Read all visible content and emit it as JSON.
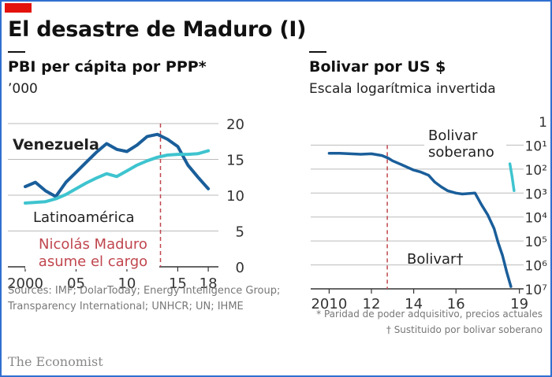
{
  "header": {
    "main_title": "El desastre de Maduro (I)"
  },
  "colors": {
    "accent_red": "#e3120b",
    "venezuela_line": "#1a5e9a",
    "latam_line": "#3ec4cf",
    "bolivar_line": "#1a5e9a",
    "bolivar_soberano_line": "#3ec4cf",
    "annotation_red": "#c0464e",
    "background": "#ffffff",
    "gridline": "#bbbbbb"
  },
  "chart_data": [
    {
      "type": "line",
      "title": "PBI per cápita por PPP*",
      "ylabel": "’000",
      "ylim": [
        0,
        20
      ],
      "y_ticks": [
        "20",
        "15",
        "10",
        "5",
        "0"
      ],
      "xlim": [
        2000,
        2019
      ],
      "x_ticks": [
        "2000",
        "05",
        "10",
        "15",
        "18"
      ],
      "grid": true,
      "axis_side": "right",
      "series": [
        {
          "name": "Venezuela",
          "x": [
            2000,
            2001,
            2002,
            2003,
            2004,
            2005,
            2006,
            2007,
            2008,
            2009,
            2010,
            2011,
            2012,
            2013,
            2014,
            2015,
            2016,
            2017,
            2018
          ],
          "values": [
            11.2,
            11.8,
            10.6,
            9.8,
            11.8,
            13.2,
            14.6,
            16.0,
            17.2,
            16.4,
            16.1,
            17.0,
            18.2,
            18.5,
            17.8,
            16.8,
            14.2,
            12.5,
            10.9
          ]
        },
        {
          "name": "Latinoamérica",
          "x": [
            2000,
            2001,
            2002,
            2003,
            2004,
            2005,
            2006,
            2007,
            2008,
            2009,
            2010,
            2011,
            2012,
            2013,
            2014,
            2015,
            2016,
            2017,
            2018
          ],
          "values": [
            8.9,
            9.0,
            9.1,
            9.5,
            10.1,
            10.9,
            11.7,
            12.4,
            13.0,
            12.6,
            13.4,
            14.2,
            14.8,
            15.3,
            15.6,
            15.7,
            15.7,
            15.8,
            16.2
          ]
        }
      ],
      "annotations": [
        {
          "text_lines": [
            "Nicolás Maduro",
            "asume el cargo"
          ],
          "x": 2013.3
        }
      ]
    },
    {
      "type": "line",
      "title": "Bolivar por US $",
      "subtitle": "Escala logarítmica invertida",
      "scale": "log-inverted",
      "ylim": [
        1,
        10000000
      ],
      "y_ticks": [
        "1",
        "10¹",
        "10²",
        "10³",
        "10⁴",
        "10⁵",
        "10⁶",
        "10⁷"
      ],
      "xlim": [
        2009.5,
        2019.2
      ],
      "x_ticks": [
        "2010",
        "12",
        "14",
        "16",
        "19"
      ],
      "grid": true,
      "axis_side": "right",
      "series": [
        {
          "name": "Bolivar†",
          "x": [
            2010.0,
            2010.5,
            2011.0,
            2011.5,
            2012.0,
            2012.5,
            2012.8,
            2013.0,
            2013.5,
            2014.0,
            2014.3,
            2014.7,
            2015.0,
            2015.3,
            2015.6,
            2016.0,
            2016.3,
            2016.6,
            2016.9,
            2017.2,
            2017.5,
            2017.8,
            2018.0,
            2018.2,
            2018.4,
            2018.6
          ],
          "values": [
            22,
            22,
            23,
            24,
            23,
            27,
            35,
            45,
            70,
            110,
            130,
            180,
            350,
            550,
            800,
            1000,
            1100,
            1050,
            1000,
            3000,
            8000,
            30000,
            120000,
            400000,
            2000000,
            8000000
          ]
        },
        {
          "name": "Bolivar soberano",
          "x": [
            2018.55,
            2018.65,
            2018.75
          ],
          "values": [
            60,
            200,
            800
          ]
        }
      ]
    }
  ],
  "footer": {
    "sources": "Sources: IMF; DolarToday; Energy Intelligence Group; Transparency International; UNHCR; UN; IHME",
    "note_ppp": "* Paridad de poder adquisitivo, precios actuales",
    "note_bolivar": "† Sustituido por bolivar soberano",
    "brand": "The Economist"
  }
}
